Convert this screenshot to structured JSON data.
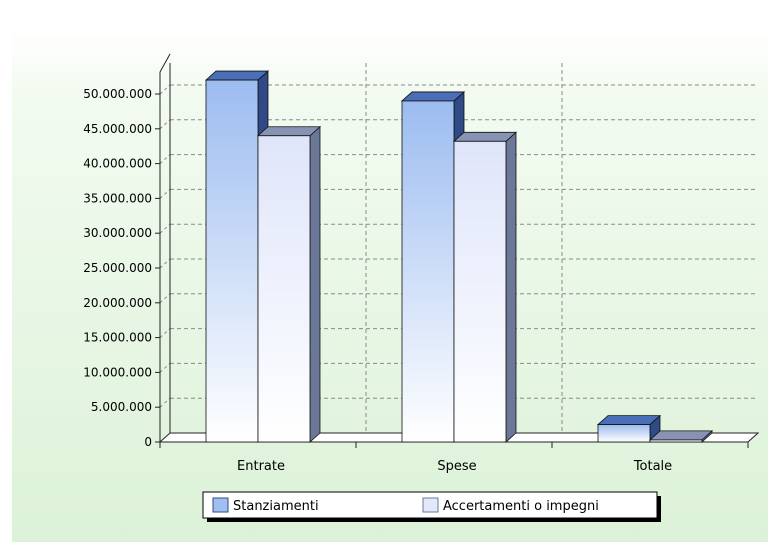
{
  "chart_data": {
    "type": "bar",
    "categories": [
      "Entrate",
      "Spese",
      "Totale"
    ],
    "series": [
      {
        "name": "Stanziamenti",
        "values": [
          52000000,
          49000000,
          2500000
        ]
      },
      {
        "name": "Accertamenti o impegni",
        "values": [
          44000000,
          43200000,
          300000
        ]
      }
    ],
    "ylim": [
      0,
      50000000
    ],
    "yticks": [
      "0",
      "5.000.000",
      "10.000.000",
      "15.000.000",
      "20.000.000",
      "25.000.000",
      "30.000.000",
      "35.000.000",
      "40.000.000",
      "45.000.000",
      "50.000.000"
    ],
    "grid": true,
    "legend": "bottom",
    "colors": {
      "series_top": [
        "#9fbff0",
        "#e2e8fb"
      ],
      "series_side": [
        "#2f4a86",
        "#6c7898"
      ],
      "series_cap": [
        "#4a6fb8",
        "#8893b3"
      ],
      "grid": "#8a8a8a",
      "background_top": "#ffffff",
      "background_bottom": "#dff3dc"
    }
  }
}
